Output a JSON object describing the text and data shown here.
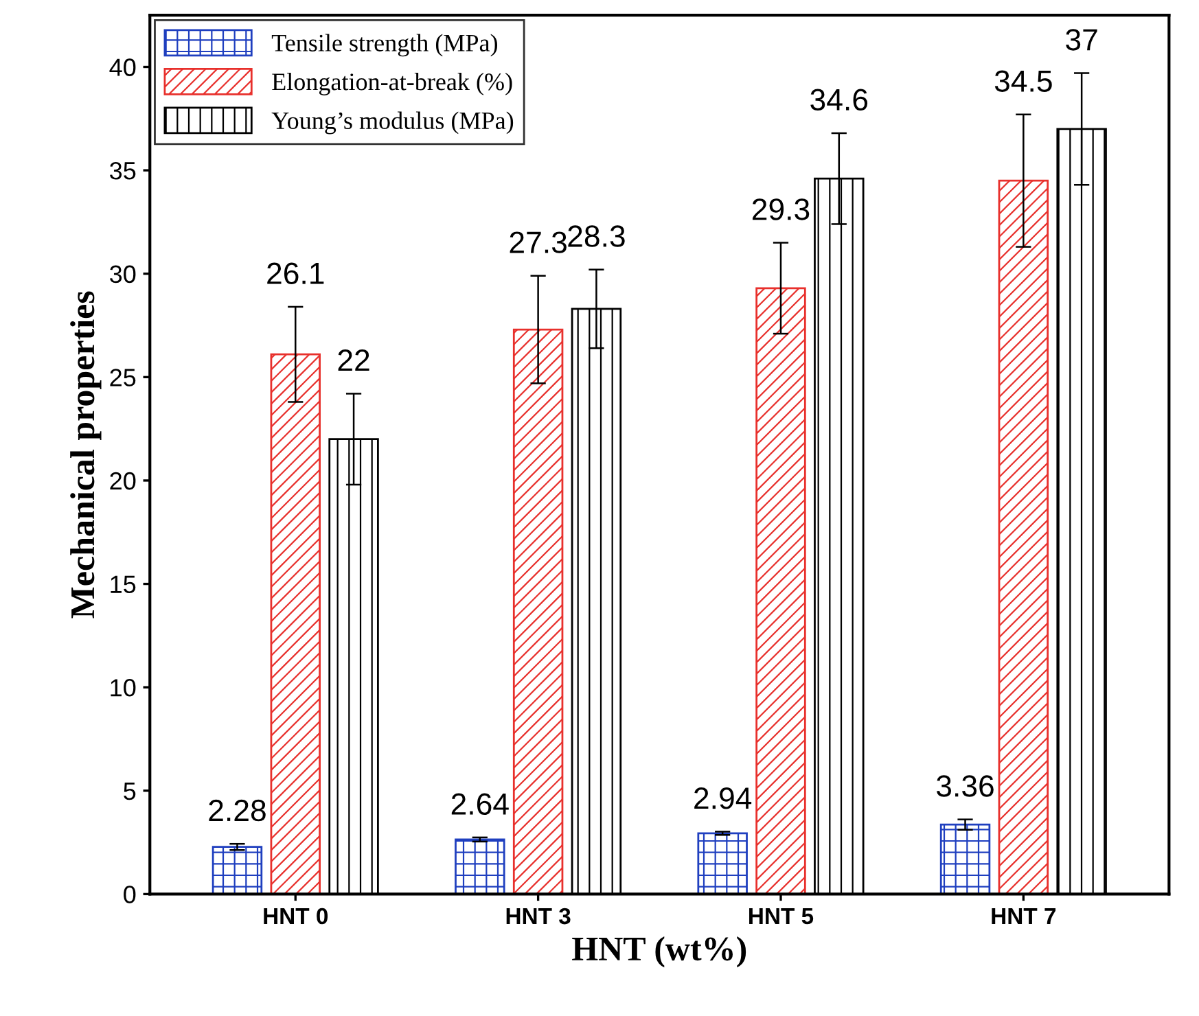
{
  "chart_data": {
    "type": "bar",
    "xlabel": "HNT (wt%)",
    "ylabel": "Mechanical properties",
    "categories": [
      "HNT 0",
      "HNT 3",
      "HNT 5",
      "HNT 7"
    ],
    "series": [
      {
        "name": "Tensile strength (MPa)",
        "color": "#1f3fbf",
        "values": [
          2.28,
          2.64,
          2.94,
          3.36
        ],
        "errors": [
          0.15,
          0.1,
          0.08,
          0.25
        ]
      },
      {
        "name": "Elongation-at-break (%)",
        "color": "#e8302c",
        "values": [
          26.1,
          27.3,
          29.3,
          34.5
        ],
        "errors": [
          2.3,
          2.6,
          2.2,
          3.2
        ]
      },
      {
        "name": "Young’s modulus (MPa)",
        "color": "#000000",
        "values": [
          22,
          28.3,
          34.6,
          37
        ],
        "errors": [
          2.2,
          1.9,
          2.2,
          2.7
        ]
      }
    ],
    "ylim": [
      0,
      42.5
    ],
    "yticks": [
      0,
      5,
      10,
      15,
      20,
      25,
      30,
      35,
      40
    ],
    "data_labels": true,
    "legend": "top left",
    "grid": false
  }
}
